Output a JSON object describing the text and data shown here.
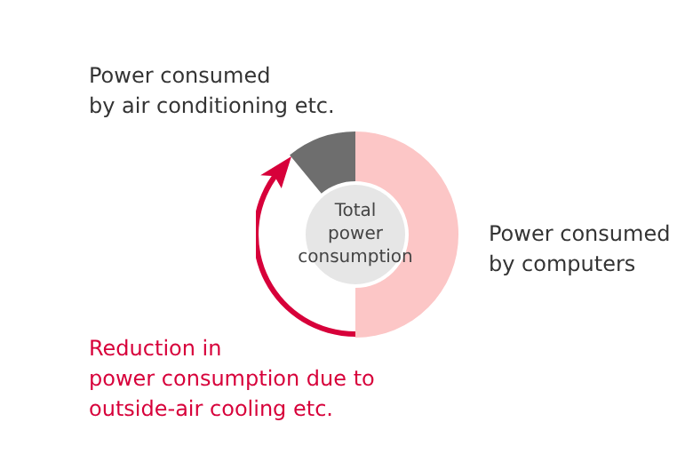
{
  "chart_data": {
    "type": "donut",
    "categories": [
      "Power consumed\nby computers",
      "Reduction in\npower consumption due to\noutside-air cooling etc.",
      "Power consumed\nby air conditioning etc."
    ],
    "values": [
      50,
      39,
      11
    ],
    "colors": [
      "#fcc6c6",
      "#ffffff",
      "#6e6e6e"
    ],
    "annotations": [
      "Total\npower\nconsumption"
    ]
  }
}
